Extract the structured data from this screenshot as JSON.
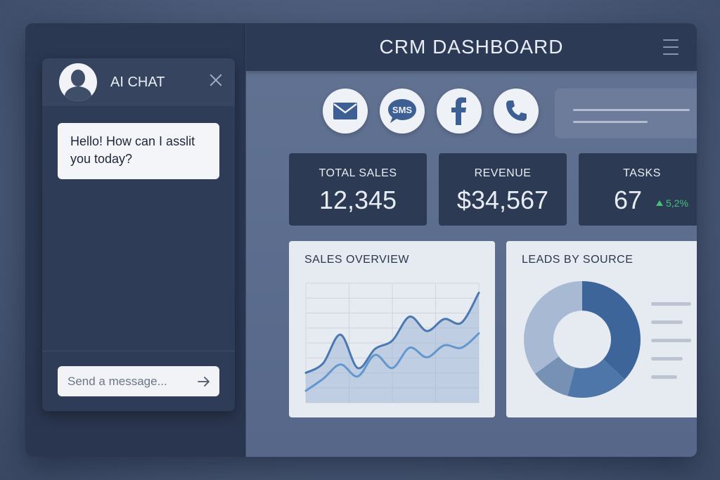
{
  "header": {
    "title": "CRM DASHBOARD"
  },
  "chat": {
    "title": "AI CHAT",
    "message": "Hello! How can I asslit you today?",
    "input_placeholder": "Send a message..."
  },
  "channels": [
    {
      "name": "mail-icon"
    },
    {
      "name": "sms-icon",
      "label": "SMS"
    },
    {
      "name": "facebook-icon",
      "label": "f"
    },
    {
      "name": "phone-icon"
    }
  ],
  "stats": [
    {
      "label": "TOTAL SALES",
      "value": "12,345"
    },
    {
      "label": "REVENUE",
      "value": "$34,567"
    },
    {
      "label": "TASKS",
      "value": "67",
      "trend": "5,2%"
    }
  ],
  "panels": {
    "sales_title": "SALES OVERVIEW",
    "leads_title": "LEADS BY SOURCE"
  },
  "chart_data": [
    {
      "type": "area",
      "title": "SALES OVERVIEW",
      "x": [
        0,
        1,
        2,
        3,
        4,
        5,
        6,
        7,
        8,
        9,
        10
      ],
      "series": [
        {
          "values": [
            25,
            33,
            57,
            29,
            45,
            52,
            72,
            60,
            70,
            67,
            92
          ]
        },
        {
          "values": [
            10,
            20,
            32,
            22,
            40,
            29,
            46,
            38,
            48,
            46,
            58
          ]
        }
      ],
      "ylim": [
        0,
        100
      ],
      "grid": true,
      "colors": [
        "#4a78b0",
        "#6497cd"
      ]
    },
    {
      "type": "pie",
      "title": "LEADS BY SOURCE",
      "values": [
        37,
        17,
        11,
        35
      ],
      "colors": [
        "#3d6599",
        "#4f76a8",
        "#7791b5",
        "#a7b9d3"
      ],
      "donut": true
    }
  ]
}
